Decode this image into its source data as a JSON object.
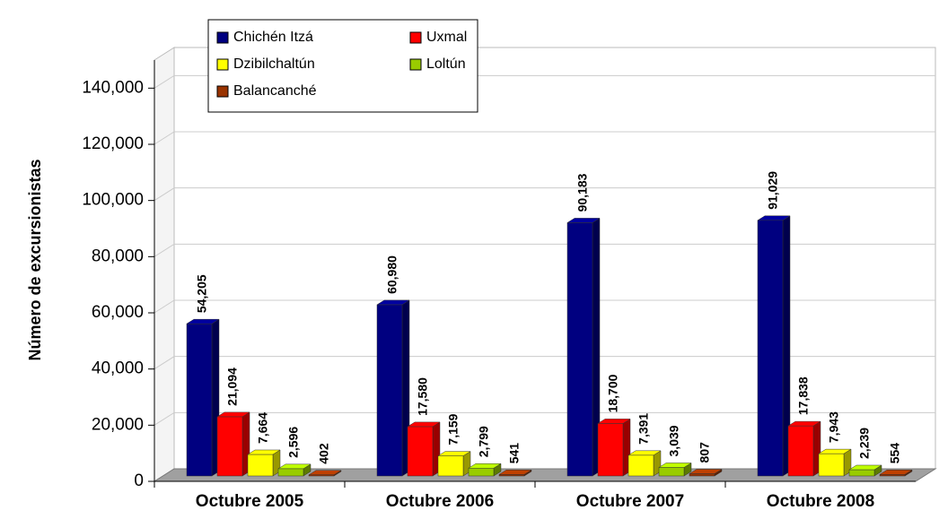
{
  "chart_data": {
    "type": "bar3d",
    "y_label": "Número de excursionistas",
    "categories": [
      "Octubre 2005",
      "Octubre 2006",
      "Octubre 2007",
      "Octubre 2008"
    ],
    "series": [
      {
        "name": "Chichén Itzá",
        "color": "#000080",
        "values": [
          54205,
          60980,
          90183,
          91029
        ],
        "value_labels": [
          "54,205",
          "60,980",
          "90,183",
          "91,029"
        ]
      },
      {
        "name": "Uxmal",
        "color": "#ff0000",
        "values": [
          21094,
          17580,
          18700,
          17838
        ],
        "value_labels": [
          "21,094",
          "17,580",
          "18,700",
          "17,838"
        ]
      },
      {
        "name": "Dzibilchaltún",
        "color": "#ffff00",
        "values": [
          7664,
          7159,
          7391,
          7943
        ],
        "value_labels": [
          "7,664",
          "7,159",
          "7,391",
          "7,943"
        ]
      },
      {
        "name": "Loltún",
        "color": "#99cc00",
        "values": [
          2596,
          2799,
          3039,
          2239
        ],
        "value_labels": [
          "2,596",
          "2,799",
          "3,039",
          "2,239"
        ]
      },
      {
        "name": "Balancanché",
        "color": "#993300",
        "values": [
          402,
          541,
          807,
          554
        ]
      }
    ],
    "ylim": [
      0,
      150000
    ],
    "yticks": [
      0,
      {
        "value": 20000,
        "label": "20,000"
      },
      {
        "value": 40000,
        "label": "40,000"
      },
      {
        "value": 60000,
        "label": "60,000"
      },
      {
        "value": 80000,
        "label": "80,000"
      },
      {
        "value": 100000,
        "label": "100,000"
      },
      {
        "value": 120000,
        "label": "120,000"
      },
      {
        "value": 140000,
        "label": "140,000"
      }
    ],
    "grid": true
  }
}
